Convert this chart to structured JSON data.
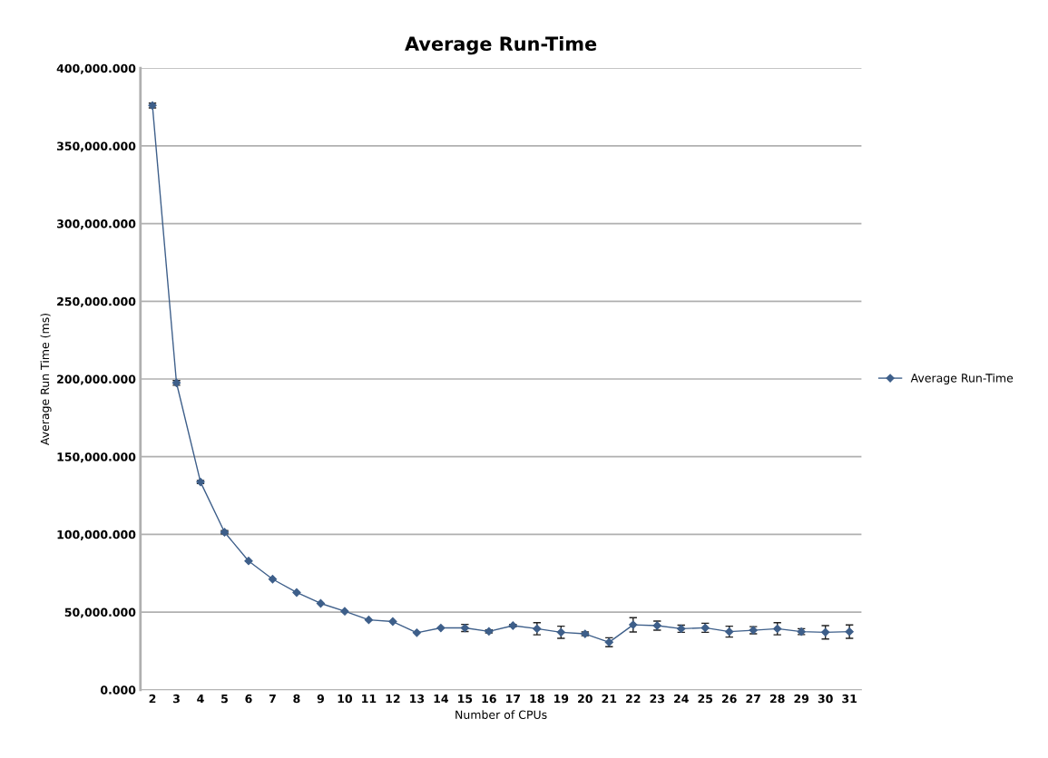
{
  "chart_data": {
    "type": "line",
    "title": "Average Run-Time",
    "xlabel": "Number of CPUs",
    "ylabel": "Average Run Time (ms)",
    "categories": [
      "2",
      "3",
      "4",
      "5",
      "6",
      "7",
      "8",
      "9",
      "10",
      "11",
      "12",
      "13",
      "14",
      "15",
      "16",
      "17",
      "18",
      "19",
      "20",
      "21",
      "22",
      "23",
      "24",
      "25",
      "26",
      "27",
      "28",
      "29",
      "30",
      "31"
    ],
    "series": [
      {
        "name": "Average Run-Time",
        "color": "#3e5f8a",
        "values": [
          376000,
          197500,
          133700,
          101400,
          82900,
          71200,
          62600,
          55600,
          50500,
          45000,
          43900,
          36700,
          39800,
          39800,
          37600,
          41300,
          39300,
          37000,
          36000,
          30600,
          41800,
          41300,
          39300,
          39900,
          37400,
          38300,
          39300,
          37400,
          37000,
          37400
        ],
        "errors": [
          1500,
          1500,
          1000,
          1000,
          null,
          null,
          null,
          null,
          null,
          null,
          null,
          null,
          null,
          2300,
          1000,
          800,
          3900,
          3900,
          1200,
          2900,
          4600,
          2900,
          2300,
          2900,
          3500,
          2300,
          3900,
          1900,
          4300,
          4300
        ]
      }
    ],
    "ylim": [
      0,
      400000
    ],
    "yticks": [
      {
        "value": 0,
        "label": "0.000"
      },
      {
        "value": 50000,
        "label": "50,000.000"
      },
      {
        "value": 100000,
        "label": "100,000.000"
      },
      {
        "value": 150000,
        "label": "150,000.000"
      },
      {
        "value": 200000,
        "label": "200,000.000"
      },
      {
        "value": 250000,
        "label": "250,000.000"
      },
      {
        "value": 300000,
        "label": "300,000.000"
      },
      {
        "value": 350000,
        "label": "350,000.000"
      },
      {
        "value": 400000,
        "label": "400,000.000"
      }
    ],
    "grid": "y",
    "legend": "right",
    "marker": "diamond",
    "line_style": "solid"
  }
}
